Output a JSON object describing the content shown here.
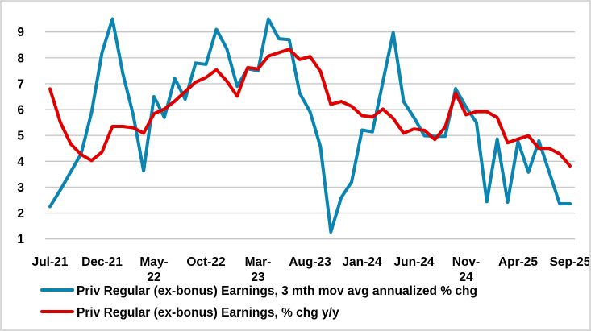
{
  "chart_data": {
    "type": "line",
    "title": "",
    "xlabel": "",
    "ylabel": "",
    "ylim": [
      1,
      9.5
    ],
    "yticks": [
      1,
      2,
      3,
      4,
      5,
      6,
      7,
      8,
      9
    ],
    "grid": "horizontal",
    "legend_position": "bottom",
    "x_start": "Jul-21",
    "x_end": "Sep-25",
    "x_frequency": "monthly",
    "xtick_labels": [
      "Jul-21",
      "Dec-21",
      "May-22",
      "Oct-22",
      "Mar-23",
      "Aug-23",
      "Jan-24",
      "Jun-24",
      "Nov-24",
      "Apr-25",
      "Sep-25"
    ],
    "series": [
      {
        "name": "Priv Regular (ex-bonus) Earnings, 3 mth mov avg annualized % chg",
        "color": "#0a84b0",
        "values": [
          2.25,
          2.9,
          3.6,
          4.3,
          5.9,
          8.2,
          9.5,
          7.4,
          5.8,
          3.63,
          6.5,
          5.7,
          7.2,
          6.4,
          7.8,
          7.75,
          9.1,
          8.35,
          6.9,
          7.58,
          7.5,
          9.5,
          8.74,
          8.7,
          6.64,
          5.92,
          4.57,
          1.27,
          2.6,
          3.2,
          5.21,
          5.14,
          7.06,
          8.98,
          6.31,
          5.69,
          4.99,
          4.97,
          4.97,
          6.81,
          6.1,
          5.5,
          2.44,
          4.86,
          2.42,
          4.77,
          3.58,
          4.79,
          3.58,
          2.36,
          2.36
        ]
      },
      {
        "name": "Priv Regular (ex-bonus) Earnings, % chg y/y",
        "color": "#e00000",
        "values": [
          6.8,
          5.5,
          4.67,
          4.26,
          4.03,
          4.36,
          5.35,
          5.35,
          5.3,
          5.09,
          5.84,
          6.02,
          6.33,
          6.7,
          7.06,
          7.24,
          7.54,
          7.1,
          6.52,
          7.62,
          7.57,
          8.07,
          8.2,
          8.33,
          7.94,
          8.05,
          7.48,
          6.2,
          6.31,
          6.13,
          5.77,
          5.71,
          6.02,
          5.66,
          5.09,
          5.25,
          5.2,
          4.84,
          5.33,
          6.64,
          5.8,
          5.92,
          5.92,
          5.69,
          4.72,
          4.86,
          4.99,
          4.5,
          4.5,
          4.29,
          3.82
        ]
      }
    ]
  }
}
